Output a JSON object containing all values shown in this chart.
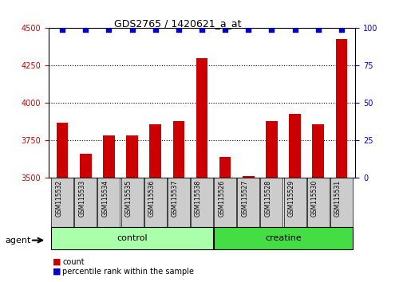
{
  "title": "GDS2765 / 1420621_a_at",
  "samples": [
    "GSM115532",
    "GSM115533",
    "GSM115534",
    "GSM115535",
    "GSM115536",
    "GSM115537",
    "GSM115538",
    "GSM115526",
    "GSM115527",
    "GSM115528",
    "GSM115529",
    "GSM115530",
    "GSM115531"
  ],
  "counts": [
    3870,
    3660,
    3785,
    3780,
    3855,
    3880,
    4300,
    3640,
    3510,
    3880,
    3925,
    3855,
    4430
  ],
  "percentiles": [
    99,
    99,
    99,
    99,
    99,
    99,
    99,
    99,
    99,
    99,
    99,
    99,
    99
  ],
  "bar_color": "#cc0000",
  "percentile_color": "#0000cc",
  "ylim_left": [
    3500,
    4500
  ],
  "ylim_right": [
    0,
    100
  ],
  "yticks_left": [
    3500,
    3750,
    4000,
    4250,
    4500
  ],
  "yticks_right": [
    0,
    25,
    50,
    75,
    100
  ],
  "groups": [
    {
      "label": "control",
      "start": 0,
      "end": 7,
      "color": "#aaffaa"
    },
    {
      "label": "creatine",
      "start": 7,
      "end": 13,
      "color": "#44dd44"
    }
  ],
  "group_row_label": "agent",
  "legend_count_label": "count",
  "legend_percentile_label": "percentile rank within the sample",
  "tick_label_color_left": "#cc0000",
  "tick_label_color_right": "#0000cc",
  "bar_bottom": 3500,
  "box_color": "#cccccc"
}
